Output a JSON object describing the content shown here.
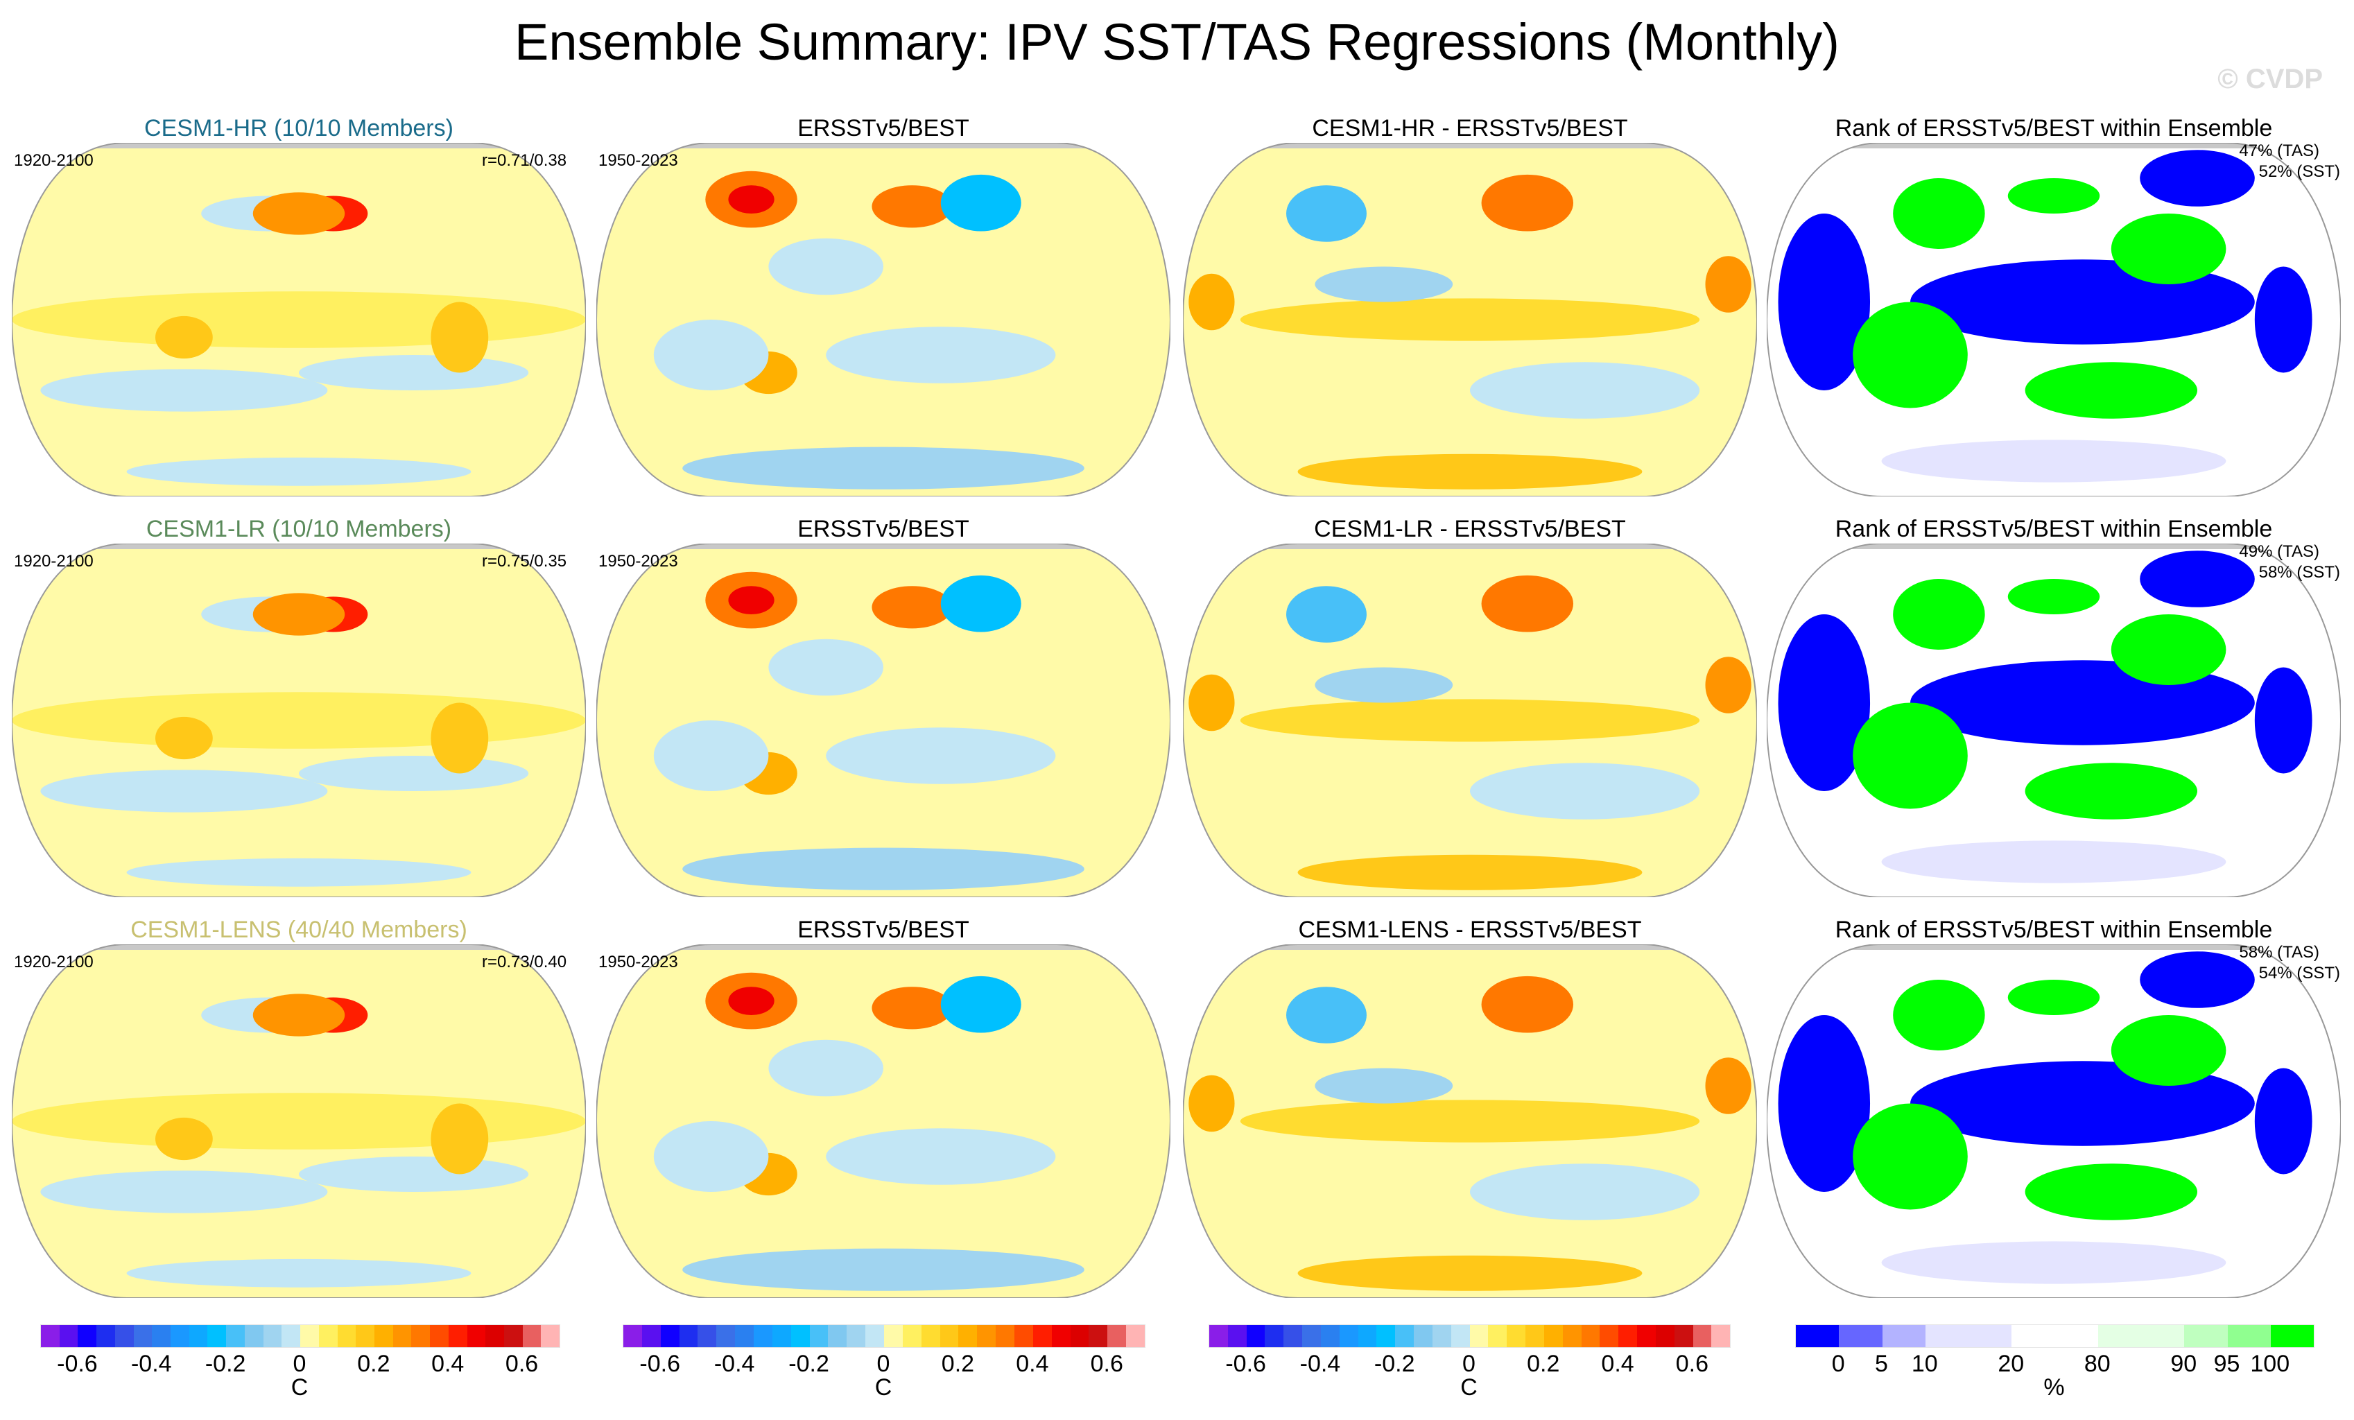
{
  "title": "Ensemble Summary: IPV SST/TAS Regressions (Monthly)",
  "watermark": "© CVDP",
  "rows": [
    {
      "model_title": "CESM1-HR (10/10 Members)",
      "model_color": "#1a6b8a",
      "model_period": "1920-2100",
      "corr": "r=0.71/0.38",
      "obs_title": "ERSSTv5/BEST",
      "obs_period": "1950-2023",
      "diff_title": "CESM1-HR - ERSSTv5/BEST",
      "rank_title": "Rank of ERSSTv5/BEST within Ensemble",
      "rank_tas": "47% (TAS)",
      "rank_sst": "52% (SST)"
    },
    {
      "model_title": "CESM1-LR (10/10 Members)",
      "model_color": "#5a8a5a",
      "model_period": "1920-2100",
      "corr": "r=0.75/0.35",
      "obs_title": "ERSSTv5/BEST",
      "obs_period": "1950-2023",
      "diff_title": "CESM1-LR - ERSSTv5/BEST",
      "rank_title": "Rank of ERSSTv5/BEST within Ensemble",
      "rank_tas": "49% (TAS)",
      "rank_sst": "58% (SST)"
    },
    {
      "model_title": "CESM1-LENS (40/40 Members)",
      "model_color": "#c8c070",
      "model_period": "1920-2100",
      "corr": "r=0.73/0.40",
      "obs_title": "ERSSTv5/BEST",
      "obs_period": "1950-2023",
      "diff_title": "CESM1-LENS - ERSSTv5/BEST",
      "rank_title": "Rank of ERSSTv5/BEST within Ensemble",
      "rank_tas": "58% (TAS)",
      "rank_sst": "54% (SST)"
    }
  ],
  "chart_data": {
    "type": "heatmap",
    "projection": "global map",
    "regression_colorbar": {
      "unit": "C",
      "range": [
        -0.7,
        0.7
      ],
      "ticks": [
        "-0.6",
        "-0.4",
        "-0.2",
        "0",
        "0.2",
        "0.4",
        "0.6"
      ],
      "colors": [
        "#8a1ee8",
        "#5a10f0",
        "#1000ff",
        "#1e2ef0",
        "#3650e8",
        "#3a70e8",
        "#2a80f0",
        "#1a98ff",
        "#0ea8ff",
        "#00c0ff",
        "#48c0f8",
        "#80c8f0",
        "#a0d4f0",
        "#c2e6f5",
        "#fffaa8",
        "#fff060",
        "#ffdc30",
        "#ffc818",
        "#ffb000",
        "#ff9400",
        "#ff7800",
        "#ff4c00",
        "#ff1e00",
        "#f00000",
        "#dc0000",
        "#cc1010",
        "#e86060",
        "#ffb4b4"
      ]
    },
    "rank_colorbar": {
      "unit": "%",
      "bounds": [
        "0",
        "5",
        "10",
        "20",
        "80",
        "90",
        "95",
        "100"
      ],
      "colors": [
        "#0000ff",
        "#6666ff",
        "#b3b3ff",
        "#e4e4ff",
        "#ffffff",
        "#e4ffe4",
        "#bfffbf",
        "#90ff90",
        "#00ff00"
      ]
    }
  }
}
